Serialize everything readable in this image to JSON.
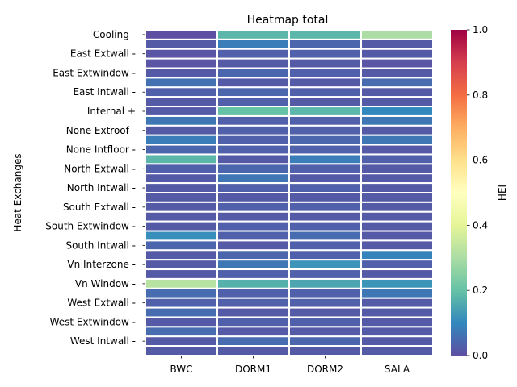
{
  "chart_data": {
    "type": "heatmap",
    "title": "Heatmap total",
    "xlabel": "",
    "ylabel": "Heat Exchanges",
    "colorbar_label": "HEI",
    "colorbar_ticks": [
      "0.0",
      "0.2",
      "0.4",
      "0.6",
      "0.8",
      "1.0"
    ],
    "vmin": 0,
    "vmax": 1,
    "colormap": "Spectral_r",
    "grid": false,
    "columns": [
      "BWC",
      "DORM1",
      "DORM2",
      "SALA"
    ],
    "row_labels": [
      "Cooling -",
      "",
      "East Extwall -",
      "",
      "East Extwindow -",
      "",
      "East Intwall -",
      "",
      "Internal +",
      "",
      "None Extroof -",
      "",
      "None Intfloor -",
      "",
      "North Extwall -",
      "",
      "North Intwall -",
      "",
      "South Extwall -",
      "",
      "South Extwindow -",
      "",
      "South Intwall -",
      "",
      "Vn Interzone -",
      "",
      "Vn Window -",
      "",
      "West Extwall -",
      "",
      "West Extwindow -",
      "",
      "West Intwall -",
      ""
    ],
    "values": [
      [
        0.0,
        0.18,
        0.18,
        0.3
      ],
      [
        0.02,
        0.08,
        0.04,
        0.02
      ],
      [
        0.01,
        0.03,
        0.03,
        0.02
      ],
      [
        0.01,
        0.02,
        0.02,
        0.01
      ],
      [
        0.02,
        0.04,
        0.03,
        0.02
      ],
      [
        0.06,
        0.02,
        0.02,
        0.05
      ],
      [
        0.03,
        0.04,
        0.03,
        0.02
      ],
      [
        0.02,
        0.03,
        0.02,
        0.02
      ],
      [
        0.02,
        0.2,
        0.18,
        0.1
      ],
      [
        0.07,
        0.03,
        0.03,
        0.07
      ],
      [
        0.02,
        0.03,
        0.03,
        0.02
      ],
      [
        0.08,
        0.03,
        0.04,
        0.07
      ],
      [
        0.04,
        0.03,
        0.03,
        0.02
      ],
      [
        0.18,
        0.02,
        0.08,
        0.03
      ],
      [
        0.03,
        0.04,
        0.03,
        0.02
      ],
      [
        0.02,
        0.07,
        0.02,
        0.02
      ],
      [
        0.02,
        0.03,
        0.03,
        0.02
      ],
      [
        0.02,
        0.02,
        0.02,
        0.02
      ],
      [
        0.02,
        0.03,
        0.03,
        0.02
      ],
      [
        0.02,
        0.02,
        0.02,
        0.02
      ],
      [
        0.02,
        0.03,
        0.03,
        0.02
      ],
      [
        0.11,
        0.03,
        0.05,
        0.02
      ],
      [
        0.04,
        0.02,
        0.03,
        0.02
      ],
      [
        0.02,
        0.04,
        0.03,
        0.09
      ],
      [
        0.02,
        0.07,
        0.12,
        0.03
      ],
      [
        0.02,
        0.03,
        0.03,
        0.02
      ],
      [
        0.32,
        0.17,
        0.15,
        0.12
      ],
      [
        0.05,
        0.03,
        0.03,
        0.07
      ],
      [
        0.03,
        0.03,
        0.03,
        0.02
      ],
      [
        0.05,
        0.02,
        0.02,
        0.02
      ],
      [
        0.02,
        0.03,
        0.03,
        0.02
      ],
      [
        0.05,
        0.02,
        0.02,
        0.02
      ],
      [
        0.02,
        0.05,
        0.04,
        0.02
      ],
      [
        0.02,
        0.02,
        0.02,
        0.02
      ]
    ]
  }
}
